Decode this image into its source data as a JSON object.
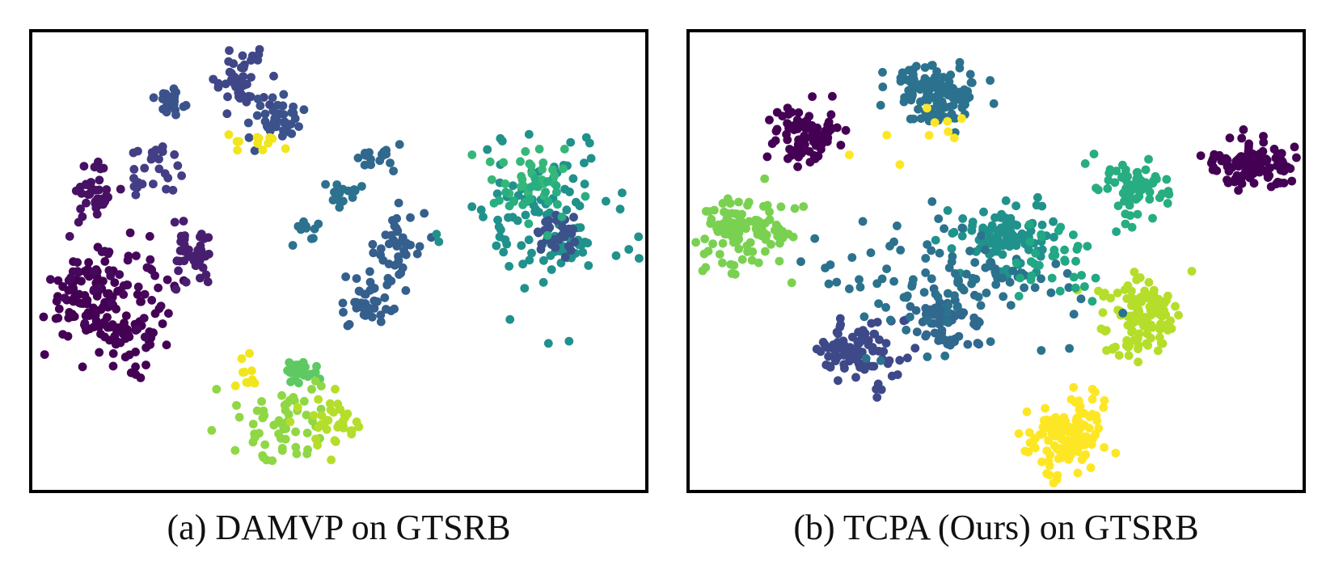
{
  "figure": {
    "panels": [
      {
        "caption": "(a) DAMVP on GTSRB"
      },
      {
        "caption": "(b) TCPA (Ours)  on GTSRB"
      }
    ]
  },
  "chart_data": [
    {
      "type": "scatter",
      "title": "",
      "xlabel": "",
      "ylabel": "",
      "xlim": [
        0,
        100
      ],
      "ylim": [
        0,
        100
      ],
      "grid": false,
      "legend": "none",
      "colormap": "viridis",
      "clusters": [
        {
          "x": 9,
          "y": 42,
          "n": 85,
          "spread": [
            3.5,
            4.5
          ],
          "color": "#440154"
        },
        {
          "x": 16,
          "y": 34,
          "n": 60,
          "spread": [
            3.0,
            3.5
          ],
          "color": "#440154"
        },
        {
          "x": 14,
          "y": 46,
          "n": 45,
          "spread": [
            5.0,
            4.0
          ],
          "color": "#46085c"
        },
        {
          "x": 10,
          "y": 64,
          "n": 38,
          "spread": [
            2.0,
            3.0
          ],
          "color": "#471164"
        },
        {
          "x": 26,
          "y": 51,
          "n": 38,
          "spread": [
            2.0,
            3.5
          ],
          "color": "#481f70"
        },
        {
          "x": 20,
          "y": 70,
          "n": 28,
          "spread": [
            2.0,
            3.0
          ],
          "color": "#433e85"
        },
        {
          "x": 23,
          "y": 85,
          "n": 22,
          "spread": [
            2.0,
            1.5
          ],
          "color": "#3b528b"
        },
        {
          "x": 34,
          "y": 90,
          "n": 45,
          "spread": [
            2.5,
            3.0
          ],
          "color": "#3f4788"
        },
        {
          "x": 40,
          "y": 81,
          "n": 40,
          "spread": [
            2.0,
            3.0
          ],
          "color": "#3b528b"
        },
        {
          "x": 60,
          "y": 54,
          "n": 38,
          "spread": [
            2.0,
            4.0
          ],
          "color": "#355f8d"
        },
        {
          "x": 55,
          "y": 41,
          "n": 38,
          "spread": [
            2.0,
            3.0
          ],
          "color": "#355f8d"
        },
        {
          "x": 56,
          "y": 73,
          "n": 16,
          "spread": [
            1.8,
            1.5
          ],
          "color": "#31688e"
        },
        {
          "x": 50,
          "y": 65,
          "n": 16,
          "spread": [
            1.6,
            1.5
          ],
          "color": "#2c728e"
        },
        {
          "x": 45,
          "y": 56,
          "n": 10,
          "spread": [
            1.5,
            2.0
          ],
          "color": "#2c728e"
        },
        {
          "x": 84,
          "y": 59,
          "n": 110,
          "spread": [
            7.0,
            9.0
          ],
          "color": "#21918c"
        },
        {
          "x": 85,
          "y": 56,
          "n": 32,
          "spread": [
            2.0,
            2.5
          ],
          "color": "#3b528b"
        },
        {
          "x": 82,
          "y": 70,
          "n": 30,
          "spread": [
            3.5,
            3.5
          ],
          "color": "#35b779"
        },
        {
          "x": 83,
          "y": 64,
          "n": 22,
          "spread": [
            4.0,
            2.5
          ],
          "color": "#28ae80"
        },
        {
          "x": 44,
          "y": 26,
          "n": 25,
          "spread": [
            1.5,
            1.8
          ],
          "color": "#5ec962"
        },
        {
          "x": 42,
          "y": 15,
          "n": 55,
          "spread": [
            4.0,
            4.5
          ],
          "color": "#8fd744"
        },
        {
          "x": 48,
          "y": 14,
          "n": 35,
          "spread": [
            2.5,
            3.0
          ],
          "color": "#b5de2b"
        },
        {
          "x": 37,
          "y": 76,
          "n": 12,
          "spread": [
            2.0,
            1.0
          ],
          "color": "#f1e51d"
        },
        {
          "x": 35,
          "y": 26,
          "n": 10,
          "spread": [
            0.8,
            2.0
          ],
          "color": "#f1e51d"
        }
      ]
    },
    {
      "type": "scatter",
      "title": "",
      "xlabel": "",
      "ylabel": "",
      "xlim": [
        0,
        100
      ],
      "ylim": [
        0,
        100
      ],
      "grid": false,
      "legend": "none",
      "colormap": "viridis",
      "clusters": [
        {
          "x": 40,
          "y": 87,
          "n": 130,
          "spread": [
            3.5,
            3.5
          ],
          "color": "#2c728e"
        },
        {
          "x": 19,
          "y": 78,
          "n": 85,
          "spread": [
            3.0,
            3.2
          ],
          "color": "#440154"
        },
        {
          "x": 92,
          "y": 71,
          "n": 100,
          "spread": [
            3.5,
            2.8
          ],
          "color": "#440154"
        },
        {
          "x": 9,
          "y": 56,
          "n": 110,
          "spread": [
            3.5,
            3.8
          ],
          "color": "#7ad151"
        },
        {
          "x": 72,
          "y": 66,
          "n": 75,
          "spread": [
            3.0,
            3.0
          ],
          "color": "#27ad81"
        },
        {
          "x": 52,
          "y": 55,
          "n": 110,
          "spread": [
            3.5,
            3.5
          ],
          "color": "#21918c"
        },
        {
          "x": 42,
          "y": 37,
          "n": 65,
          "spread": [
            3.0,
            3.0
          ],
          "color": "#31688e"
        },
        {
          "x": 27,
          "y": 30,
          "n": 90,
          "spread": [
            3.5,
            3.5
          ],
          "color": "#3e4989"
        },
        {
          "x": 73,
          "y": 38,
          "n": 120,
          "spread": [
            3.2,
            4.5
          ],
          "color": "#b5de2b"
        },
        {
          "x": 62,
          "y": 12,
          "n": 130,
          "spread": [
            3.2,
            4.0
          ],
          "color": "#fde725"
        },
        {
          "x": 42,
          "y": 45,
          "n": 110,
          "spread": [
            10.0,
            6.0
          ],
          "color": "#2c728e"
        },
        {
          "x": 60,
          "y": 50,
          "n": 35,
          "spread": [
            5.0,
            4.0
          ],
          "color": "#22a884"
        },
        {
          "x": 38,
          "y": 78,
          "n": 10,
          "spread": [
            6.0,
            5.0
          ],
          "color": "#fde725"
        }
      ]
    }
  ]
}
